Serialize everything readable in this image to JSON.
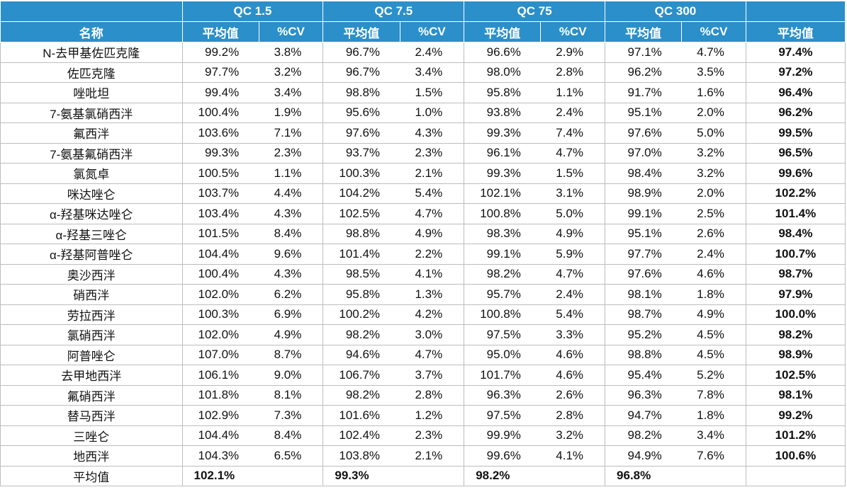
{
  "header": {
    "groups": [
      "QC 1.5",
      "QC 7.5",
      "QC 75",
      "QC 300"
    ],
    "name_label": "名称",
    "mean_label": "平均值",
    "cv_label": "%CV",
    "overall_label": "平均值"
  },
  "rows": [
    {
      "name": "N-去甲基佐匹克隆",
      "vals": [
        "99.2%",
        "3.8%",
        "96.7%",
        "2.4%",
        "96.6%",
        "2.9%",
        "97.1%",
        "4.7%"
      ],
      "overall": "97.4%"
    },
    {
      "name": "佐匹克隆",
      "vals": [
        "97.7%",
        "3.2%",
        "96.7%",
        "3.4%",
        "98.0%",
        "2.8%",
        "96.2%",
        "3.5%"
      ],
      "overall": "97.2%"
    },
    {
      "name": "唑吡坦",
      "vals": [
        "99.4%",
        "3.4%",
        "98.8%",
        "1.5%",
        "95.8%",
        "1.1%",
        "91.7%",
        "1.6%"
      ],
      "overall": "96.4%"
    },
    {
      "name": "7-氨基氯硝西泮",
      "vals": [
        "100.4%",
        "1.9%",
        "95.6%",
        "1.0%",
        "93.8%",
        "2.4%",
        "95.1%",
        "2.0%"
      ],
      "overall": "96.2%"
    },
    {
      "name": "氟西泮",
      "vals": [
        "103.6%",
        "7.1%",
        "97.6%",
        "4.3%",
        "99.3%",
        "7.4%",
        "97.6%",
        "5.0%"
      ],
      "overall": "99.5%"
    },
    {
      "name": "7-氨基氟硝西泮",
      "vals": [
        "99.3%",
        "2.3%",
        "93.7%",
        "2.3%",
        "96.1%",
        "4.7%",
        "97.0%",
        "3.2%"
      ],
      "overall": "96.5%"
    },
    {
      "name": "氯氮卓",
      "vals": [
        "100.5%",
        "1.1%",
        "100.3%",
        "2.1%",
        "99.3%",
        "1.5%",
        "98.4%",
        "3.2%"
      ],
      "overall": "99.6%"
    },
    {
      "name": "咪达唑仑",
      "vals": [
        "103.7%",
        "4.4%",
        "104.2%",
        "5.4%",
        "102.1%",
        "3.1%",
        "98.9%",
        "2.0%"
      ],
      "overall": "102.2%"
    },
    {
      "name": "α-羟基咪达唑仑",
      "vals": [
        "103.4%",
        "4.3%",
        "102.5%",
        "4.7%",
        "100.8%",
        "5.0%",
        "99.1%",
        "2.5%"
      ],
      "overall": "101.4%"
    },
    {
      "name": "α-羟基三唑仑",
      "vals": [
        "101.5%",
        "8.4%",
        "98.8%",
        "4.9%",
        "98.3%",
        "4.9%",
        "95.1%",
        "2.6%"
      ],
      "overall": "98.4%"
    },
    {
      "name": "α-羟基阿普唑仑",
      "vals": [
        "104.4%",
        "9.6%",
        "101.4%",
        "2.2%",
        "99.1%",
        "5.9%",
        "97.7%",
        "2.4%"
      ],
      "overall": "100.7%"
    },
    {
      "name": "奥沙西泮",
      "vals": [
        "100.4%",
        "4.3%",
        "98.5%",
        "4.1%",
        "98.2%",
        "4.7%",
        "97.6%",
        "4.6%"
      ],
      "overall": "98.7%"
    },
    {
      "name": "硝西泮",
      "vals": [
        "102.0%",
        "6.2%",
        "95.8%",
        "1.3%",
        "95.7%",
        "2.4%",
        "98.1%",
        "1.8%"
      ],
      "overall": "97.9%"
    },
    {
      "name": "劳拉西泮",
      "vals": [
        "100.3%",
        "6.9%",
        "100.2%",
        "4.2%",
        "100.8%",
        "5.4%",
        "98.7%",
        "4.9%"
      ],
      "overall": "100.0%"
    },
    {
      "name": "氯硝西泮",
      "vals": [
        "102.0%",
        "4.9%",
        "98.2%",
        "3.0%",
        "97.5%",
        "3.3%",
        "95.2%",
        "4.5%"
      ],
      "overall": "98.2%"
    },
    {
      "name": "阿普唑仑",
      "vals": [
        "107.0%",
        "8.7%",
        "94.6%",
        "4.7%",
        "95.0%",
        "4.6%",
        "98.8%",
        "4.5%"
      ],
      "overall": "98.9%"
    },
    {
      "name": "去甲地西泮",
      "vals": [
        "106.1%",
        "9.0%",
        "106.7%",
        "3.7%",
        "101.7%",
        "4.6%",
        "95.4%",
        "5.2%"
      ],
      "overall": "102.5%"
    },
    {
      "name": "氟硝西泮",
      "vals": [
        "101.8%",
        "8.1%",
        "98.2%",
        "2.8%",
        "96.3%",
        "2.6%",
        "96.3%",
        "7.8%"
      ],
      "overall": "98.1%"
    },
    {
      "name": "替马西泮",
      "vals": [
        "102.9%",
        "7.3%",
        "101.6%",
        "1.2%",
        "97.5%",
        "2.8%",
        "94.7%",
        "1.8%"
      ],
      "overall": "99.2%"
    },
    {
      "name": "三唑仑",
      "vals": [
        "104.4%",
        "8.4%",
        "102.4%",
        "2.3%",
        "99.9%",
        "3.2%",
        "98.2%",
        "3.4%"
      ],
      "overall": "101.2%"
    },
    {
      "name": "地西泮",
      "vals": [
        "104.3%",
        "6.5%",
        "103.8%",
        "2.1%",
        "99.6%",
        "4.1%",
        "94.9%",
        "7.6%"
      ],
      "overall": "100.6%"
    }
  ],
  "average_row": {
    "label": "平均值",
    "vals": [
      "102.1%",
      "99.3%",
      "98.2%",
      "96.8%"
    ]
  },
  "colors": {
    "header_bg": "#2b8fc9",
    "header_text": "#ffffff",
    "grid": "#bdbdbd"
  }
}
